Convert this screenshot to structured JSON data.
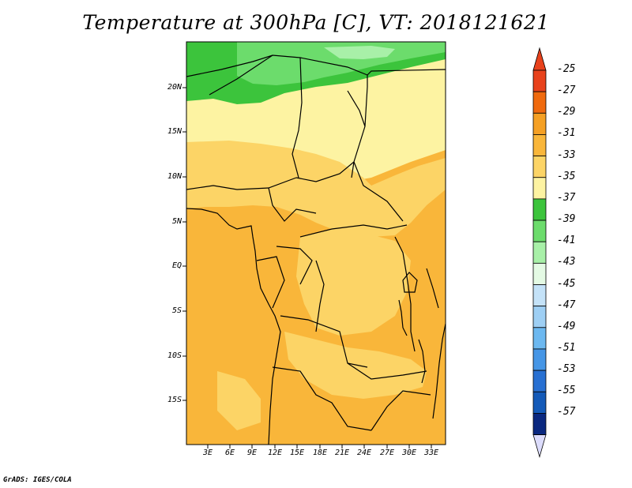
{
  "title": "Temperature at 300hPa [C], VT: 2018121621",
  "credit": "GrADS: IGES/COLA",
  "lat_labels": [
    "20N",
    "15N",
    "10N",
    "5N",
    "EQ",
    "5S",
    "10S",
    "15S"
  ],
  "lon_labels": [
    "3E",
    "6E",
    "9E",
    "12E",
    "15E",
    "18E",
    "21E",
    "24E",
    "27E",
    "30E",
    "33E"
  ],
  "colorbar": {
    "labels": [
      "-25",
      "-27",
      "-29",
      "-31",
      "-33",
      "-35",
      "-37",
      "-39",
      "-41",
      "-43",
      "-45",
      "-47",
      "-49",
      "-51",
      "-53",
      "-55",
      "-57"
    ],
    "colors": [
      "#e8421c",
      "#f06a0e",
      "#f5a024",
      "#f9b63a",
      "#fcd466",
      "#fdf3a2",
      "#3cc43c",
      "#6cdc6c",
      "#a8f0a8",
      "#e4fae4",
      "#c4e2f8",
      "#9ecff4",
      "#6cb8f0",
      "#4696e6",
      "#2870d2",
      "#145ab8",
      "#0a2880"
    ],
    "top_triangle_color": "#e8421c",
    "bottom_triangle_color": "#dcdcfc"
  },
  "map_colors": {
    "green_dark": "#3cc43c",
    "green_mid": "#6cdc6c",
    "green_light": "#a8f0a8",
    "pale_yellow": "#fdf3a2",
    "yellow": "#fcd466",
    "orange": "#f9b63a"
  }
}
